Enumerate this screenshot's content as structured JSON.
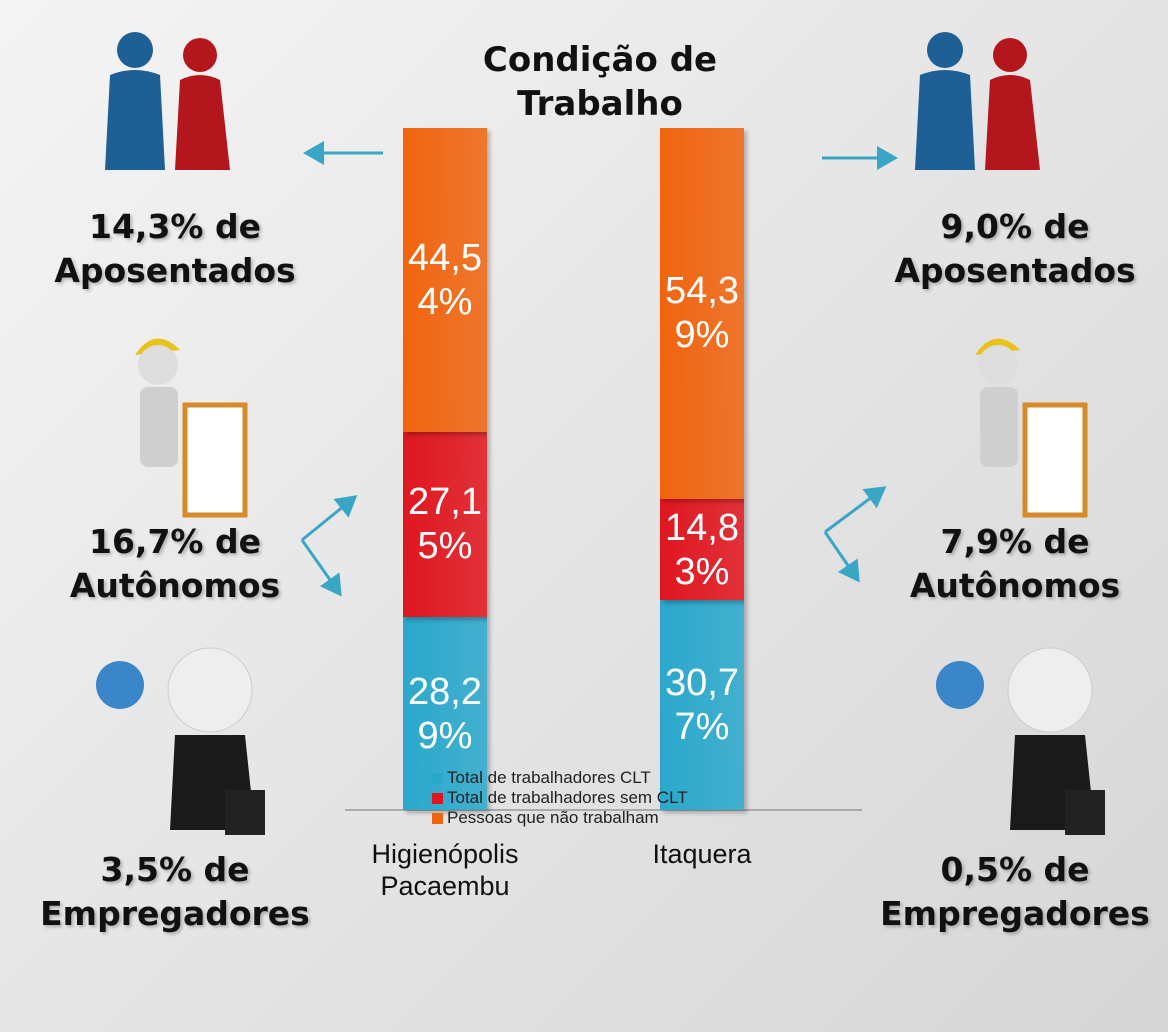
{
  "chart_data": {
    "type": "stacked_bar",
    "title": "Condição de Trabalho",
    "categories": [
      "Higienópolis Pacaembu",
      "Itaquera"
    ],
    "series": [
      {
        "name": "Total de trabalhadores CLT",
        "color": "#2aa8cc",
        "values": [
          28.29,
          30.77
        ],
        "value_labels": [
          "28,29%",
          "30,77%"
        ]
      },
      {
        "name": "Total de trabalhadores sem CLT",
        "color": "#e0161f",
        "values": [
          27.15,
          14.83
        ],
        "value_labels": [
          "27,15%",
          "14,83%"
        ]
      },
      {
        "name": "Pessoas que não trabalham",
        "color": "#f0640f",
        "values": [
          44.54,
          54.39
        ],
        "value_labels": [
          "44,54%",
          "54,39%"
        ]
      }
    ],
    "annotations": {
      "left": [
        "14,3% de Aposentados",
        "16,7% de Autônomos",
        "3,5% de Empregadores"
      ],
      "right": [
        "9,0% de Aposentados",
        "7,9% de Autônomos",
        "0,5% de Empregadores"
      ]
    }
  }
}
